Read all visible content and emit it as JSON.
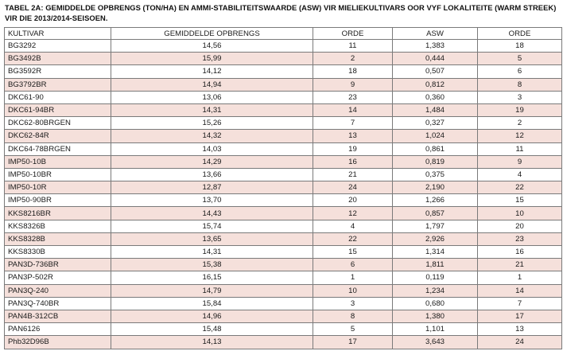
{
  "caption_line1": "TABEL 2A: GEMIDDELDE OPBRENGS (TON/HA) EN AMMI-STABILITEITSWAARDE (ASW) VIR MIELIEKULTIVARS OOR VYF LOKALITEITE (WARM STREEK)",
  "caption_line2": "VIR DIE 2013/2014-SEISOEN.",
  "headers": [
    "KULTIVAR",
    "GEMIDDELDE OPBRENGS",
    "ORDE",
    "ASW",
    "ORDE"
  ],
  "rows": [
    [
      "BG3292",
      "14,56",
      "11",
      "1,383",
      "18"
    ],
    [
      "BG3492B",
      "15,99",
      "2",
      "0,444",
      "5"
    ],
    [
      "BG3592R",
      "14,12",
      "18",
      "0,507",
      "6"
    ],
    [
      "BG3792BR",
      "14,94",
      "9",
      "0,812",
      "8"
    ],
    [
      "DKC61-90",
      "13,06",
      "23",
      "0,360",
      "3"
    ],
    [
      "DKC61-94BR",
      "14,31",
      "14",
      "1,484",
      "19"
    ],
    [
      "DKC62-80BRGEN",
      "15,26",
      "7",
      "0,327",
      "2"
    ],
    [
      "DKC62-84R",
      "14,32",
      "13",
      "1,024",
      "12"
    ],
    [
      "DKC64-78BRGEN",
      "14,03",
      "19",
      "0,861",
      "11"
    ],
    [
      "IMP50-10B",
      "14,29",
      "16",
      "0,819",
      "9"
    ],
    [
      "IMP50-10BR",
      "13,66",
      "21",
      "0,375",
      "4"
    ],
    [
      "IMP50-10R",
      "12,87",
      "24",
      "2,190",
      "22"
    ],
    [
      "IMP50-90BR",
      "13,70",
      "20",
      "1,266",
      "15"
    ],
    [
      "KKS8216BR",
      "14,43",
      "12",
      "0,857",
      "10"
    ],
    [
      "KKS8326B",
      "15,74",
      "4",
      "1,797",
      "20"
    ],
    [
      "KKS8328B",
      "13,65",
      "22",
      "2,926",
      "23"
    ],
    [
      "KKS8330B",
      "14,31",
      "15",
      "1,314",
      "16"
    ],
    [
      "PAN3D-736BR",
      "15,38",
      "6",
      "1,811",
      "21"
    ],
    [
      "PAN3P-502R",
      "16,15",
      "1",
      "0,119",
      "1"
    ],
    [
      "PAN3Q-240",
      "14,79",
      "10",
      "1,234",
      "14"
    ],
    [
      "PAN3Q-740BR",
      "15,84",
      "3",
      "0,680",
      "7"
    ],
    [
      "PAN4B-312CB",
      "14,96",
      "8",
      "1,380",
      "17"
    ],
    [
      "PAN6126",
      "15,48",
      "5",
      "1,101",
      "13"
    ],
    [
      "Phb32D96B",
      "14,13",
      "17",
      "3,643",
      "24"
    ]
  ],
  "colors": {
    "shade_row": "#f5e0db",
    "border": "#7a7a7a"
  }
}
